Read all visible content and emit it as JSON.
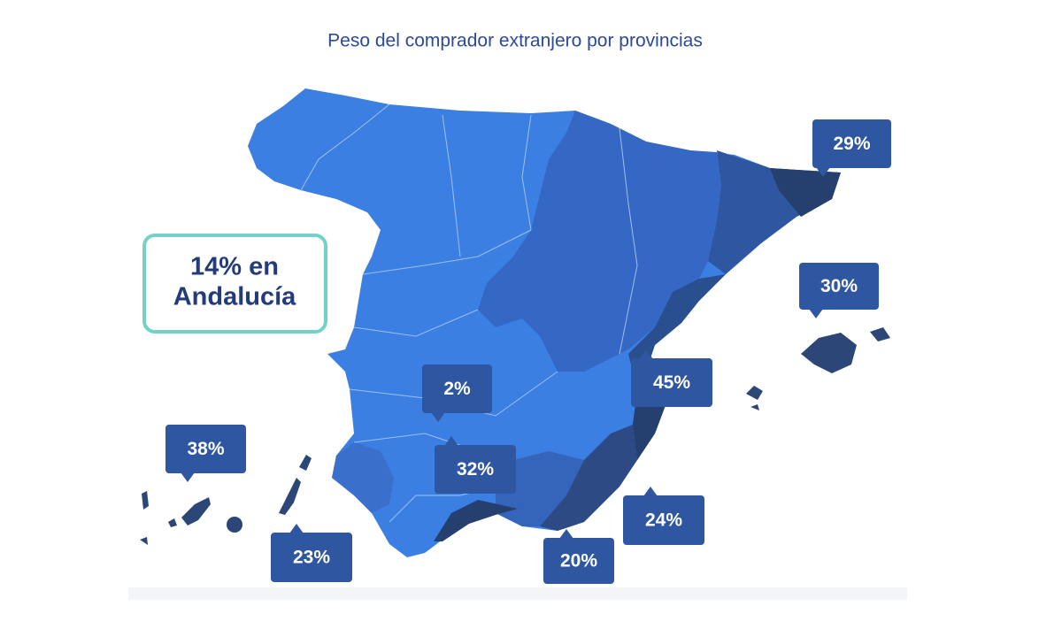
{
  "title": "Peso del comprador extranjero por provincias",
  "highlight": {
    "lines": [
      "14% en",
      "Andalucía"
    ]
  },
  "callouts": [
    "29%",
    "30%",
    "45%",
    "2%",
    "32%",
    "38%",
    "23%",
    "20%",
    "24%"
  ]
}
